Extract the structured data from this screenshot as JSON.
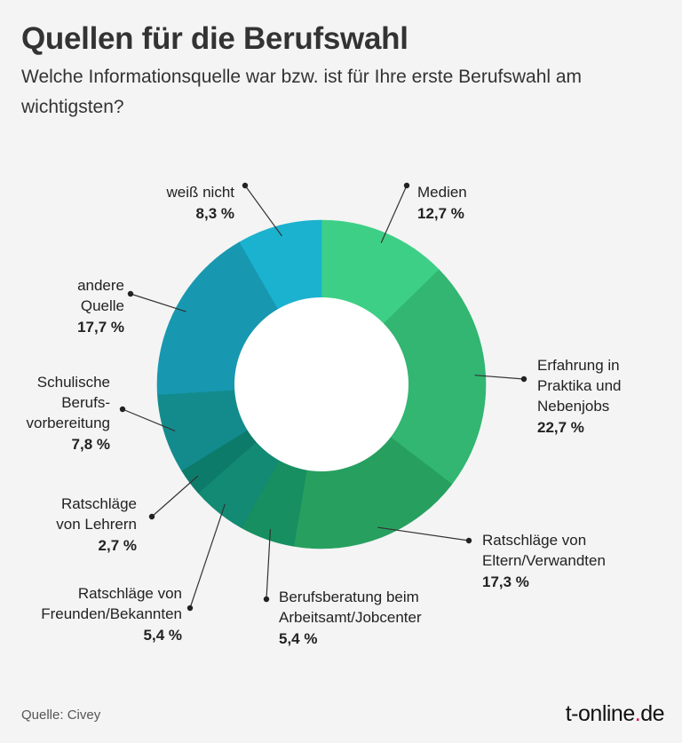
{
  "title": "Quellen für die Berufswahl",
  "subtitle": "Welche Informationsquelle war bzw. ist für Ihre erste Berufswahl am wichtigsten?",
  "source": "Quelle: Civey",
  "brand": {
    "pre": "t-online",
    "dot": ".",
    "post": "de",
    "dot_color": "#e4003a"
  },
  "chart_data": {
    "type": "pie",
    "donut": true,
    "unit": "%",
    "slices": [
      {
        "label": [
          "Medien"
        ],
        "value": 12.7,
        "display": "12,7 %",
        "color": "#3ecf87"
      },
      {
        "label": [
          "Erfahrung in",
          "Praktika und",
          "Nebenjobs"
        ],
        "value": 22.7,
        "display": "22,7 %",
        "color": "#32b672"
      },
      {
        "label": [
          "Ratschläge von",
          "Eltern/Verwandten"
        ],
        "value": 17.3,
        "display": "17,3 %",
        "color": "#27a05f"
      },
      {
        "label": [
          "Berufsberatung beim",
          "Arbeitsamt/Jobcenter"
        ],
        "value": 5.4,
        "display": "5,4 %",
        "color": "#178f60"
      },
      {
        "label": [
          "Ratschläge von",
          "Freunden/Bekannten"
        ],
        "value": 5.4,
        "display": "5,4 %",
        "color": "#138a74"
      },
      {
        "label": [
          "Ratschläge",
          "von Lehrern"
        ],
        "value": 2.7,
        "display": "2,7 %",
        "color": "#0d7b6a"
      },
      {
        "label": [
          "Schulische",
          "Berufs-",
          "vorbereitung"
        ],
        "value": 7.8,
        "display": "7,8 %",
        "color": "#138b8d"
      },
      {
        "label": [
          "andere",
          "Quelle"
        ],
        "value": 17.7,
        "display": "17,7 %",
        "color": "#1798b0"
      },
      {
        "label": [
          "weiß nicht"
        ],
        "value": 8.3,
        "display": "8,3 %",
        "color": "#1ab2cf"
      }
    ]
  }
}
